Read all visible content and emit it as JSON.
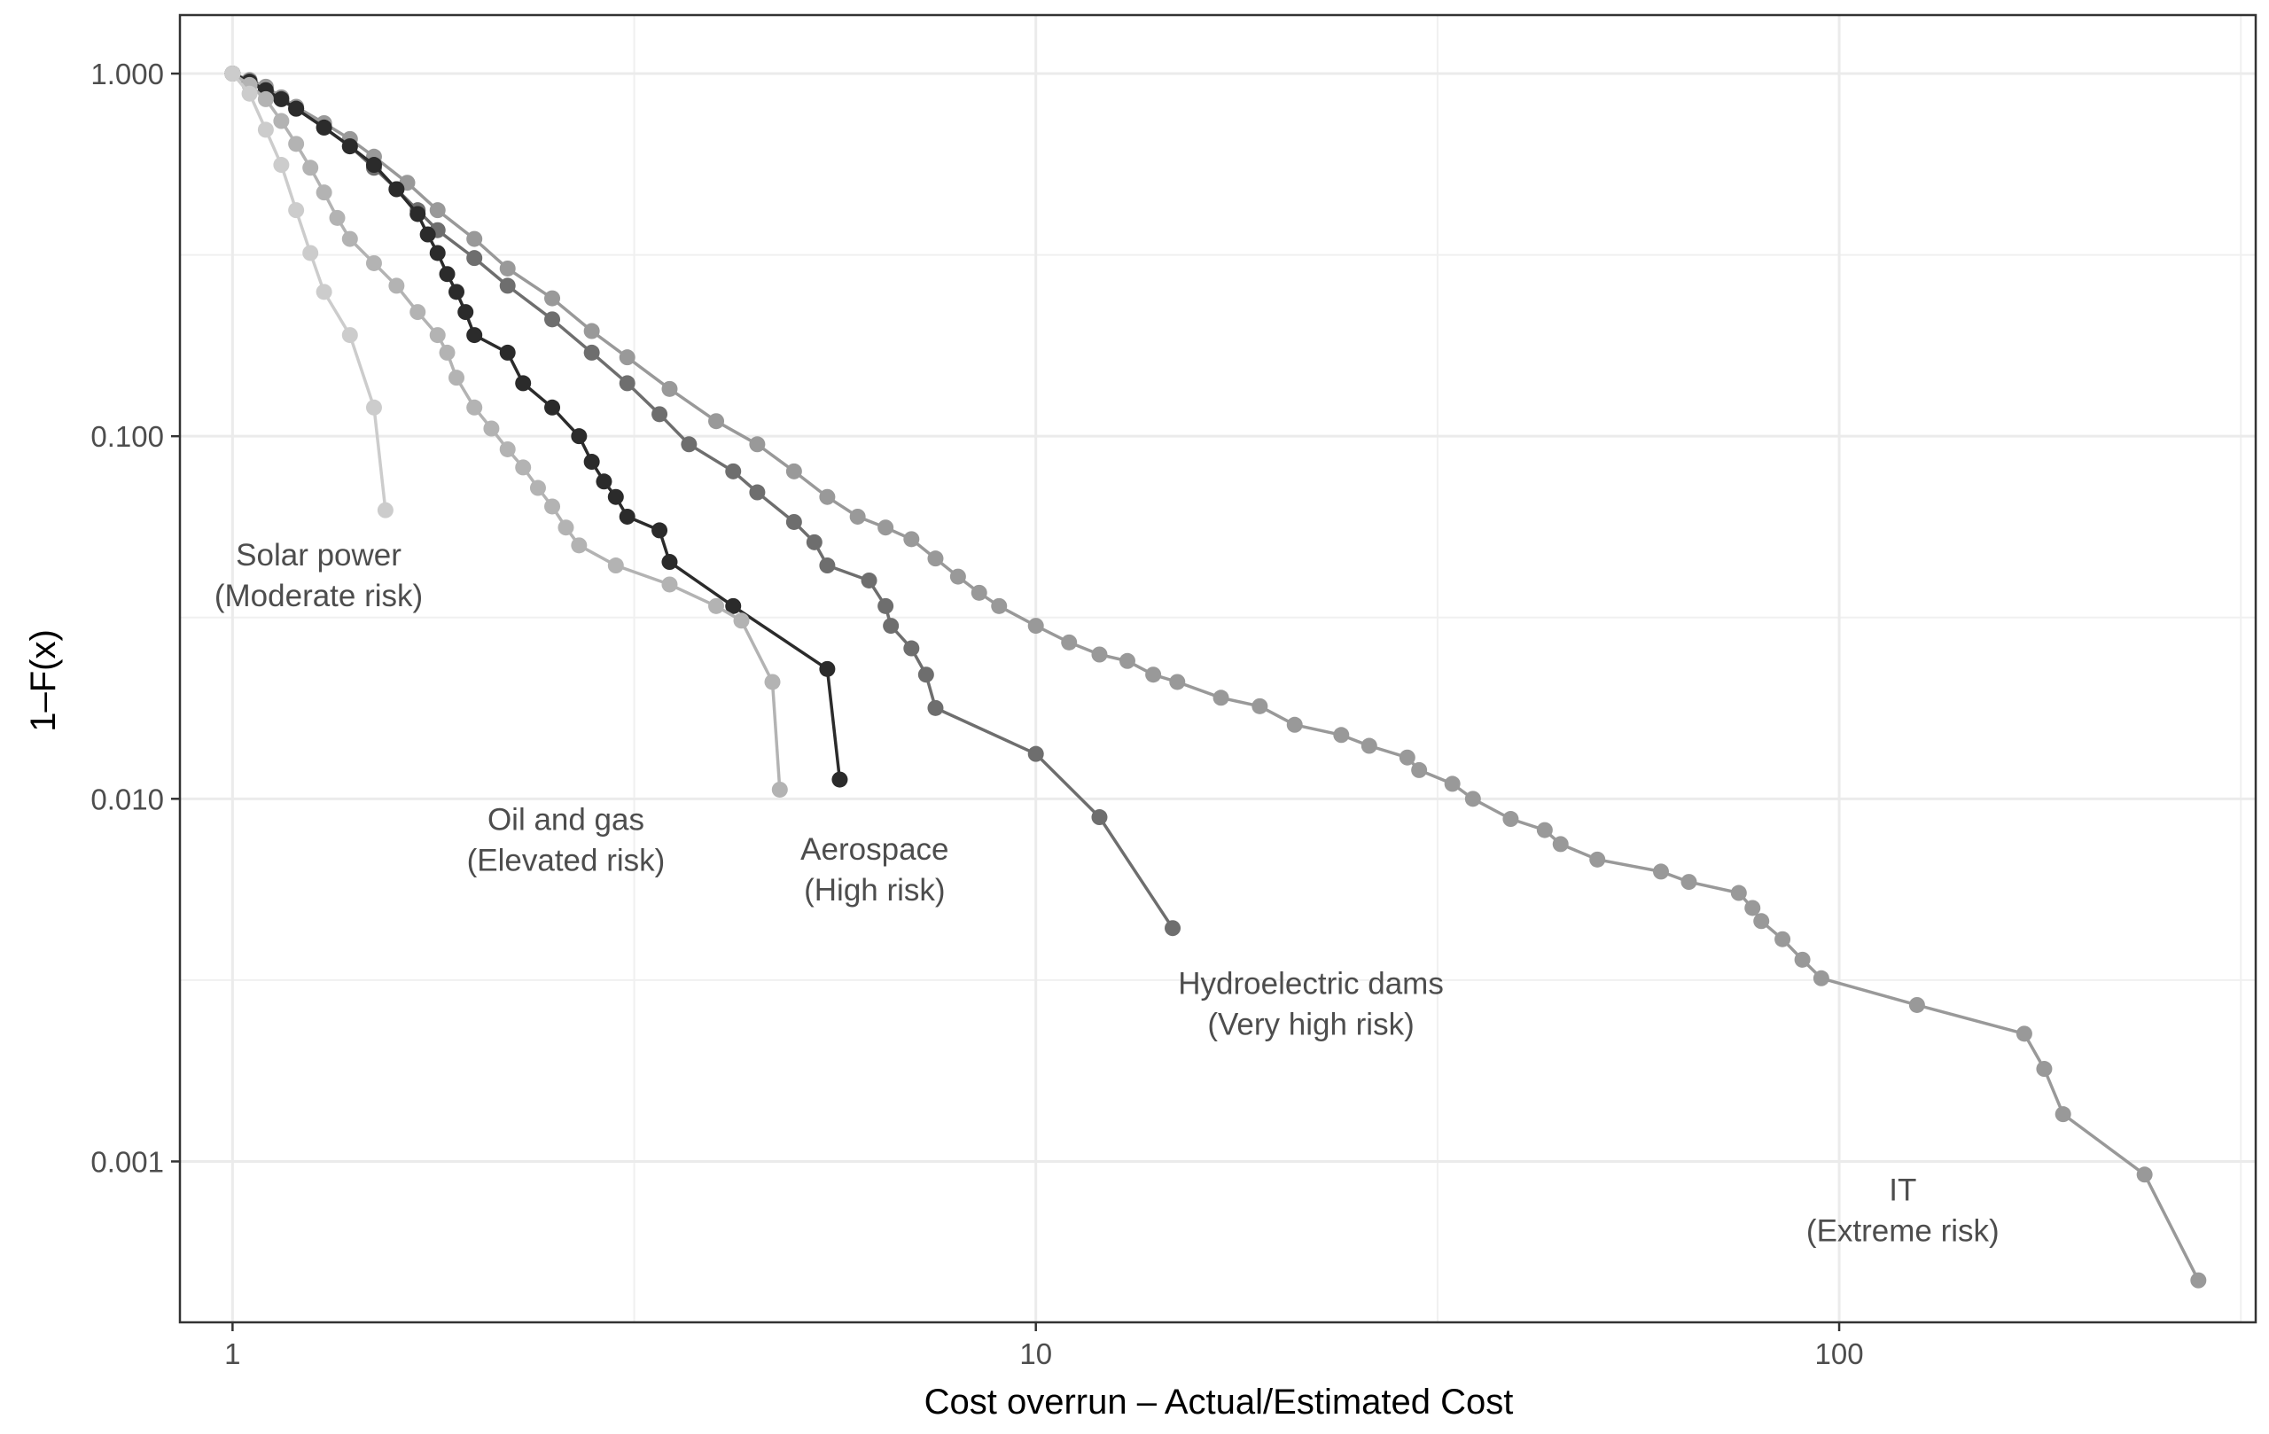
{
  "chart_data": {
    "type": "line",
    "title": "",
    "xlabel": "Cost overrun – Actual/Estimated Cost",
    "ylabel": "1–F(x)",
    "x_scale": "log",
    "y_scale": "log",
    "xlim": [
      0.86,
      330
    ],
    "ylim": [
      0.00036,
      1.45
    ],
    "grid": true,
    "x_ticks": [
      {
        "value": 1,
        "label": "1"
      },
      {
        "value": 10,
        "label": "10"
      },
      {
        "value": 100,
        "label": "100"
      }
    ],
    "y_ticks": [
      {
        "value": 1,
        "label": "1.000"
      },
      {
        "value": 0.1,
        "label": "0.100"
      },
      {
        "value": 0.01,
        "label": "0.010"
      },
      {
        "value": 0.001,
        "label": "0.001"
      }
    ],
    "series": [
      {
        "name": "IT",
        "annotation": [
          "IT",
          "(Extreme risk)"
        ],
        "label_at": [
          120,
          0.00078
        ],
        "color": "#999999",
        "points": [
          [
            1.0,
            1.0
          ],
          [
            1.05,
            0.96
          ],
          [
            1.1,
            0.92
          ],
          [
            1.15,
            0.86
          ],
          [
            1.2,
            0.81
          ],
          [
            1.3,
            0.73
          ],
          [
            1.4,
            0.66
          ],
          [
            1.5,
            0.59
          ],
          [
            1.65,
            0.5
          ],
          [
            1.8,
            0.42
          ],
          [
            2.0,
            0.35
          ],
          [
            2.2,
            0.29
          ],
          [
            2.5,
            0.24
          ],
          [
            2.8,
            0.195
          ],
          [
            3.1,
            0.165
          ],
          [
            3.5,
            0.135
          ],
          [
            4.0,
            0.11
          ],
          [
            4.5,
            0.095
          ],
          [
            5.0,
            0.08
          ],
          [
            5.5,
            0.068
          ],
          [
            6.0,
            0.06
          ],
          [
            6.5,
            0.056
          ],
          [
            7.0,
            0.052
          ],
          [
            7.5,
            0.046
          ],
          [
            8.0,
            0.041
          ],
          [
            8.5,
            0.037
          ],
          [
            9.0,
            0.034
          ],
          [
            10.0,
            0.03
          ],
          [
            11.0,
            0.027
          ],
          [
            12.0,
            0.025
          ],
          [
            13.0,
            0.024
          ],
          [
            14.0,
            0.022
          ],
          [
            15.0,
            0.021
          ],
          [
            17.0,
            0.019
          ],
          [
            19.0,
            0.018
          ],
          [
            21.0,
            0.016
          ],
          [
            24.0,
            0.015
          ],
          [
            26.0,
            0.014
          ],
          [
            29.0,
            0.013
          ],
          [
            30.0,
            0.012
          ],
          [
            33.0,
            0.011
          ],
          [
            35.0,
            0.01
          ],
          [
            39.0,
            0.0088
          ],
          [
            43.0,
            0.0082
          ],
          [
            45.0,
            0.0075
          ],
          [
            50.0,
            0.0068
          ],
          [
            60.0,
            0.0063
          ],
          [
            65.0,
            0.0059
          ],
          [
            75.0,
            0.0055
          ],
          [
            78.0,
            0.005
          ],
          [
            80.0,
            0.0046
          ],
          [
            85.0,
            0.0041
          ],
          [
            90.0,
            0.0036
          ],
          [
            95.0,
            0.0032
          ],
          [
            125.0,
            0.0027
          ],
          [
            170.0,
            0.00225
          ],
          [
            180.0,
            0.0018
          ],
          [
            190.0,
            0.00135
          ],
          [
            240.0,
            0.00092
          ],
          [
            280.0,
            0.00047
          ]
        ]
      },
      {
        "name": "Hydroelectric dams",
        "annotation": [
          "Hydroelectric dams",
          "(Very high risk)"
        ],
        "label_at": [
          22,
          0.0029
        ],
        "color": "#6e6e6e",
        "points": [
          [
            1.0,
            1.0
          ],
          [
            1.05,
            0.95
          ],
          [
            1.1,
            0.89
          ],
          [
            1.2,
            0.8
          ],
          [
            1.3,
            0.71
          ],
          [
            1.4,
            0.63
          ],
          [
            1.5,
            0.55
          ],
          [
            1.6,
            0.48
          ],
          [
            1.7,
            0.42
          ],
          [
            1.8,
            0.37
          ],
          [
            2.0,
            0.31
          ],
          [
            2.2,
            0.26
          ],
          [
            2.5,
            0.21
          ],
          [
            2.8,
            0.17
          ],
          [
            3.1,
            0.14
          ],
          [
            3.4,
            0.115
          ],
          [
            3.7,
            0.095
          ],
          [
            4.2,
            0.08
          ],
          [
            4.5,
            0.07
          ],
          [
            5.0,
            0.058
          ],
          [
            5.3,
            0.051
          ],
          [
            5.5,
            0.044
          ],
          [
            6.2,
            0.04
          ],
          [
            6.5,
            0.034
          ],
          [
            6.6,
            0.03
          ],
          [
            7.0,
            0.026
          ],
          [
            7.3,
            0.022
          ],
          [
            7.5,
            0.0178
          ],
          [
            10.0,
            0.0133
          ],
          [
            12.0,
            0.0089
          ],
          [
            14.8,
            0.0044
          ]
        ]
      },
      {
        "name": "Aerospace",
        "annotation": [
          "Aerospace",
          "(High risk)"
        ],
        "label_at": [
          6.3,
          0.0068
        ],
        "color": "#2b2b2b",
        "points": [
          [
            1.0,
            1.0
          ],
          [
            1.05,
            0.95
          ],
          [
            1.1,
            0.9
          ],
          [
            1.15,
            0.85
          ],
          [
            1.2,
            0.8
          ],
          [
            1.3,
            0.71
          ],
          [
            1.4,
            0.63
          ],
          [
            1.5,
            0.56
          ],
          [
            1.6,
            0.48
          ],
          [
            1.7,
            0.41
          ],
          [
            1.75,
            0.36
          ],
          [
            1.8,
            0.32
          ],
          [
            1.85,
            0.28
          ],
          [
            1.9,
            0.25
          ],
          [
            1.95,
            0.22
          ],
          [
            2.0,
            0.19
          ],
          [
            2.2,
            0.17
          ],
          [
            2.3,
            0.14
          ],
          [
            2.5,
            0.12
          ],
          [
            2.7,
            0.1
          ],
          [
            2.8,
            0.085
          ],
          [
            2.9,
            0.075
          ],
          [
            3.0,
            0.068
          ],
          [
            3.1,
            0.06
          ],
          [
            3.4,
            0.055
          ],
          [
            3.5,
            0.045
          ],
          [
            4.2,
            0.034
          ],
          [
            5.5,
            0.0228
          ],
          [
            5.7,
            0.0113
          ]
        ]
      },
      {
        "name": "Oil and gas",
        "annotation": [
          "Oil and gas",
          "(Elevated risk)"
        ],
        "label_at": [
          2.6,
          0.0082
        ],
        "color": "#b3b3b3",
        "points": [
          [
            1.0,
            1.0
          ],
          [
            1.05,
            0.93
          ],
          [
            1.1,
            0.85
          ],
          [
            1.15,
            0.74
          ],
          [
            1.2,
            0.64
          ],
          [
            1.25,
            0.55
          ],
          [
            1.3,
            0.47
          ],
          [
            1.35,
            0.4
          ],
          [
            1.4,
            0.35
          ],
          [
            1.5,
            0.3
          ],
          [
            1.6,
            0.26
          ],
          [
            1.7,
            0.22
          ],
          [
            1.8,
            0.19
          ],
          [
            1.85,
            0.17
          ],
          [
            1.9,
            0.145
          ],
          [
            2.0,
            0.12
          ],
          [
            2.1,
            0.105
          ],
          [
            2.2,
            0.092
          ],
          [
            2.3,
            0.082
          ],
          [
            2.4,
            0.072
          ],
          [
            2.5,
            0.064
          ],
          [
            2.6,
            0.056
          ],
          [
            2.7,
            0.05
          ],
          [
            3.0,
            0.044
          ],
          [
            3.5,
            0.039
          ],
          [
            4.0,
            0.034
          ],
          [
            4.3,
            0.031
          ],
          [
            4.7,
            0.021
          ],
          [
            4.8,
            0.0106
          ]
        ]
      },
      {
        "name": "Solar power",
        "annotation": [
          "Solar power",
          "(Moderate risk)"
        ],
        "label_at": [
          1.28,
          0.044
        ],
        "color": "#cccccc",
        "points": [
          [
            1.0,
            1.0
          ],
          [
            1.05,
            0.88
          ],
          [
            1.1,
            0.7
          ],
          [
            1.15,
            0.56
          ],
          [
            1.2,
            0.42
          ],
          [
            1.25,
            0.32
          ],
          [
            1.3,
            0.25
          ],
          [
            1.4,
            0.19
          ],
          [
            1.5,
            0.12
          ],
          [
            1.55,
            0.0625
          ]
        ]
      }
    ]
  }
}
